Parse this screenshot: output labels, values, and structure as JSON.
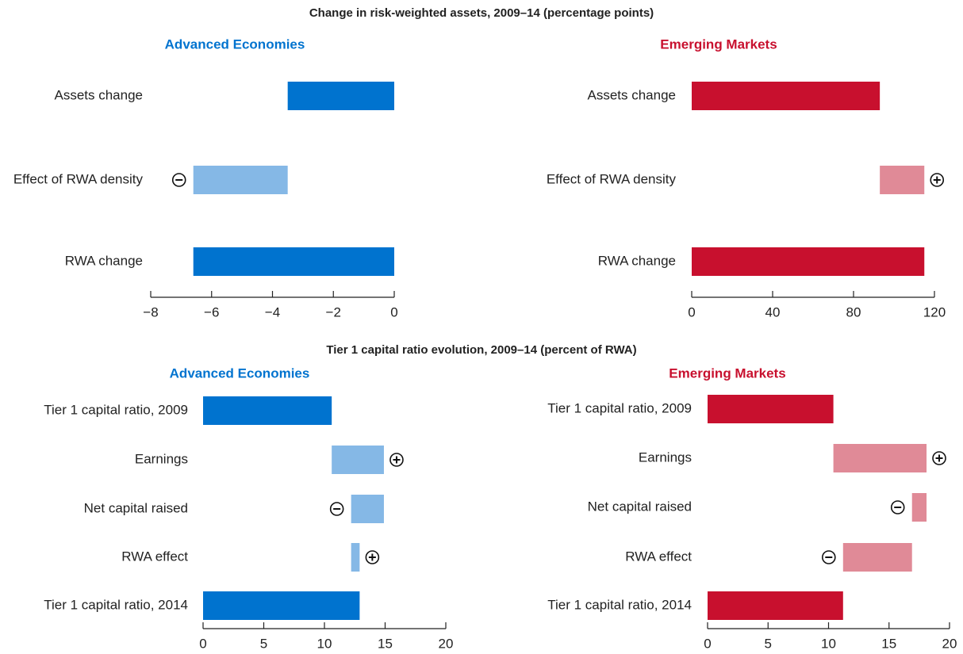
{
  "chart_data": [
    {
      "type": "waterfall",
      "title": "Change in risk-weighted assets, 2009–14 (percentage points)",
      "subtitle": "Advanced Economies",
      "categories": [
        "Assets change",
        "Effect of RWA density",
        "RWA change"
      ],
      "values": [
        -3.5,
        -3.1,
        -6.6
      ],
      "measure": [
        "absolute",
        "relative",
        "absolute"
      ],
      "colors": [
        "#0073cf",
        "#85b8e6",
        "#0073cf"
      ],
      "xlim": [
        -8,
        0
      ],
      "xticks": [
        {
          "value": -8,
          "label": "−8"
        },
        {
          "value": -6,
          "label": "−6"
        },
        {
          "value": -4,
          "label": "−4"
        },
        {
          "value": -2,
          "label": "−2"
        },
        0
      ]
    },
    {
      "type": "waterfall",
      "subtitle": "Emerging Markets",
      "categories": [
        "Assets change",
        "Effect of RWA density",
        "RWA change"
      ],
      "values": [
        93,
        22,
        115
      ],
      "measure": [
        "absolute",
        "relative",
        "absolute"
      ],
      "colors": [
        "#c8102e",
        "#e08a97",
        "#c8102e"
      ],
      "xlim": [
        0,
        120
      ],
      "xticks": [
        0,
        40,
        80,
        120
      ]
    },
    {
      "type": "waterfall",
      "title": "Tier 1 capital ratio evolution, 2009–14 (percent of RWA)",
      "subtitle": "Advanced Economies",
      "categories": [
        "Tier 1 capital ratio, 2009",
        "Earnings",
        "Net capital raised",
        "RWA effect",
        "Tier 1 capital ratio, 2014"
      ],
      "values": [
        10.6,
        4.3,
        -2.7,
        0.7,
        12.9
      ],
      "measure": [
        "absolute",
        "relative",
        "relative",
        "relative",
        "absolute"
      ],
      "colors": [
        "#0073cf",
        "#85b8e6",
        "#85b8e6",
        "#85b8e6",
        "#0073cf"
      ],
      "xlim": [
        0,
        20
      ],
      "xticks": [
        0,
        5,
        10,
        15,
        20
      ]
    },
    {
      "type": "waterfall",
      "subtitle": "Emerging Markets",
      "categories": [
        "Tier 1 capital ratio, 2009",
        "Earnings",
        "Net capital raised",
        "RWA effect",
        "Tier 1 capital ratio, 2014"
      ],
      "values": [
        10.4,
        7.7,
        -1.2,
        -5.7,
        11.2
      ],
      "measure": [
        "absolute",
        "relative",
        "relative",
        "relative",
        "absolute"
      ],
      "colors": [
        "#c8102e",
        "#e08a97",
        "#e08a97",
        "#e08a97",
        "#c8102e"
      ],
      "xlim": [
        0,
        20
      ],
      "xticks": [
        0,
        5,
        10,
        15,
        20
      ]
    }
  ]
}
